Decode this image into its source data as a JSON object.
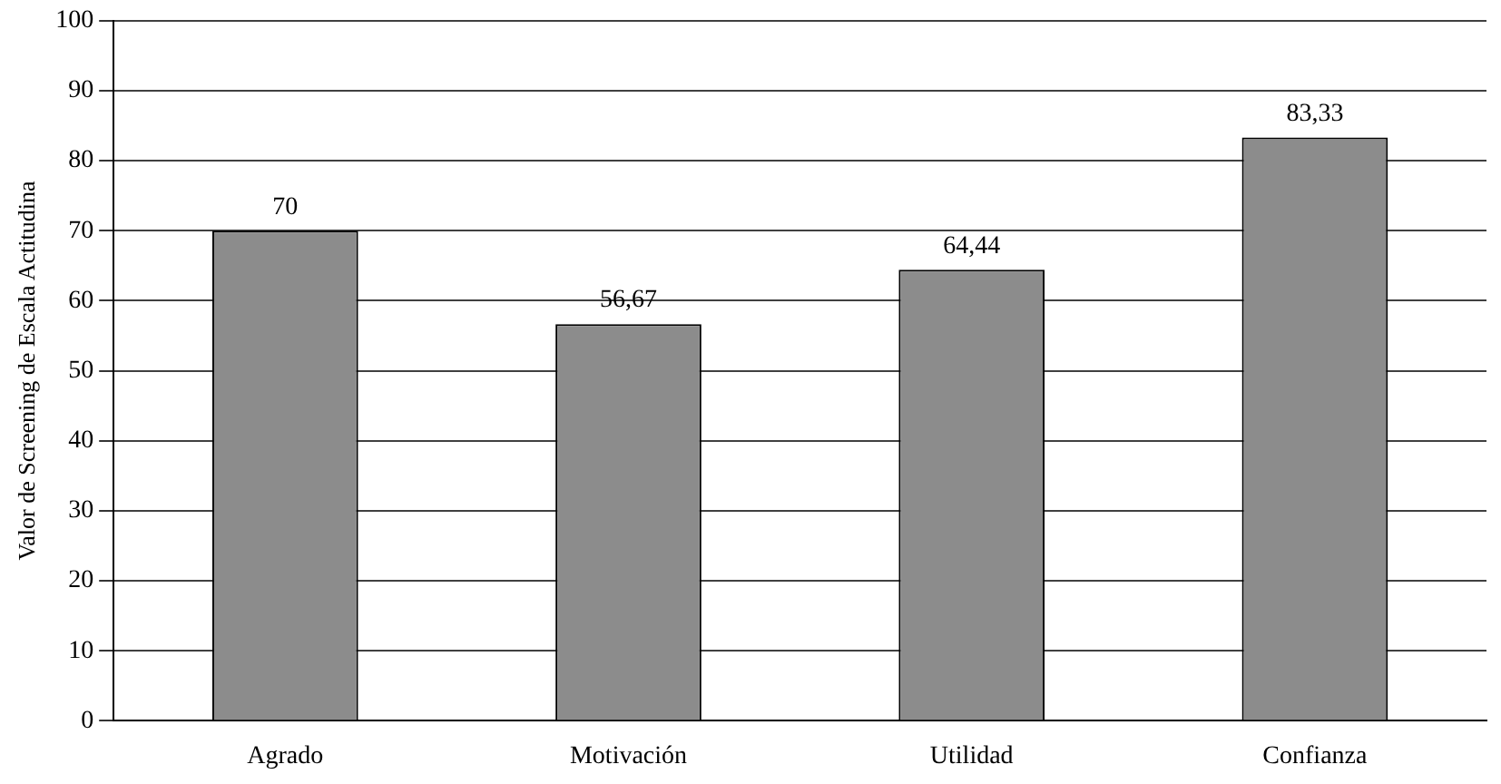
{
  "chart_data": {
    "type": "bar",
    "ylabel": "Valor de Screening de Escala Actitudina",
    "categories": [
      "Agrado",
      "Motivación",
      "Utilidad",
      "Confianza"
    ],
    "values": [
      70,
      56.67,
      64.44,
      83.33
    ],
    "value_labels": [
      "70",
      "56,67",
      "64,44",
      "83,33"
    ],
    "color": "#8c8c8c",
    "ylim": [
      0,
      100
    ],
    "yticks": [
      0,
      10,
      20,
      30,
      40,
      50,
      60,
      70,
      80,
      90,
      100
    ],
    "grid": "y",
    "legend": false
  }
}
